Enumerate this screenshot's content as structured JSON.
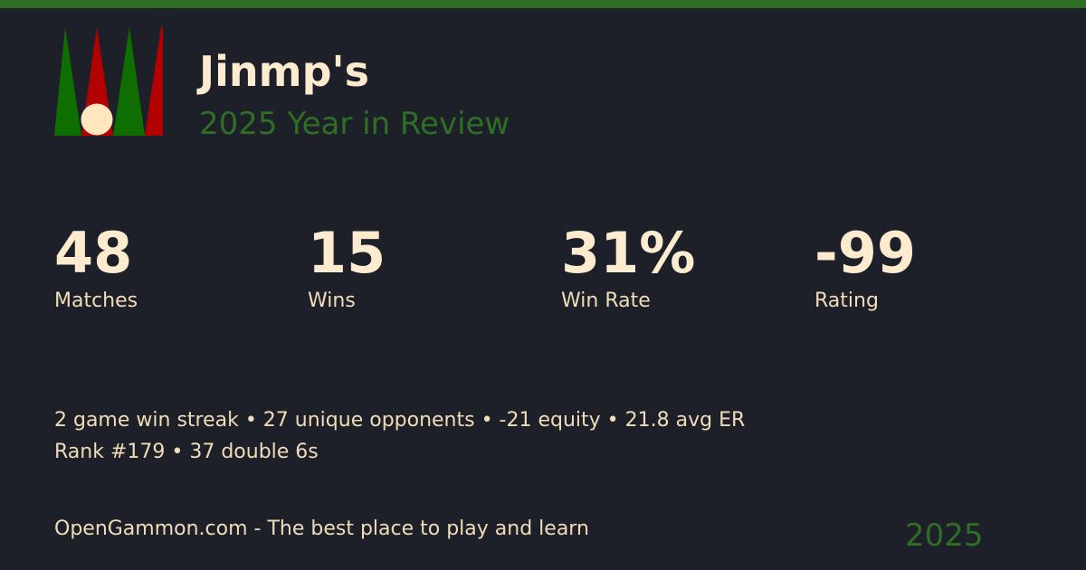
{
  "header": {
    "title": "Jinmp's",
    "subtitle": "2025 Year in Review"
  },
  "logo": {
    "icon": "backgammon-board-icon",
    "colors": {
      "green": "#0f6e00",
      "red": "#b30000",
      "checker": "#ffe6bf"
    }
  },
  "stats": [
    {
      "value": "48",
      "label": "Matches"
    },
    {
      "value": "15",
      "label": "Wins"
    },
    {
      "value": "31%",
      "label": "Win Rate"
    },
    {
      "value": "-99",
      "label": "Rating"
    }
  ],
  "details": {
    "line1": "2 game win streak • 27 unique opponents • -21 equity • 21.8 avg ER",
    "line2": "Rank #179 • 37 double 6s"
  },
  "footer": {
    "tagline": "OpenGammon.com - The best place to play and learn",
    "year": "2025"
  },
  "colors": {
    "accent": "#2e6e25",
    "background": "#1e2029",
    "text": "#f5e6c8"
  }
}
